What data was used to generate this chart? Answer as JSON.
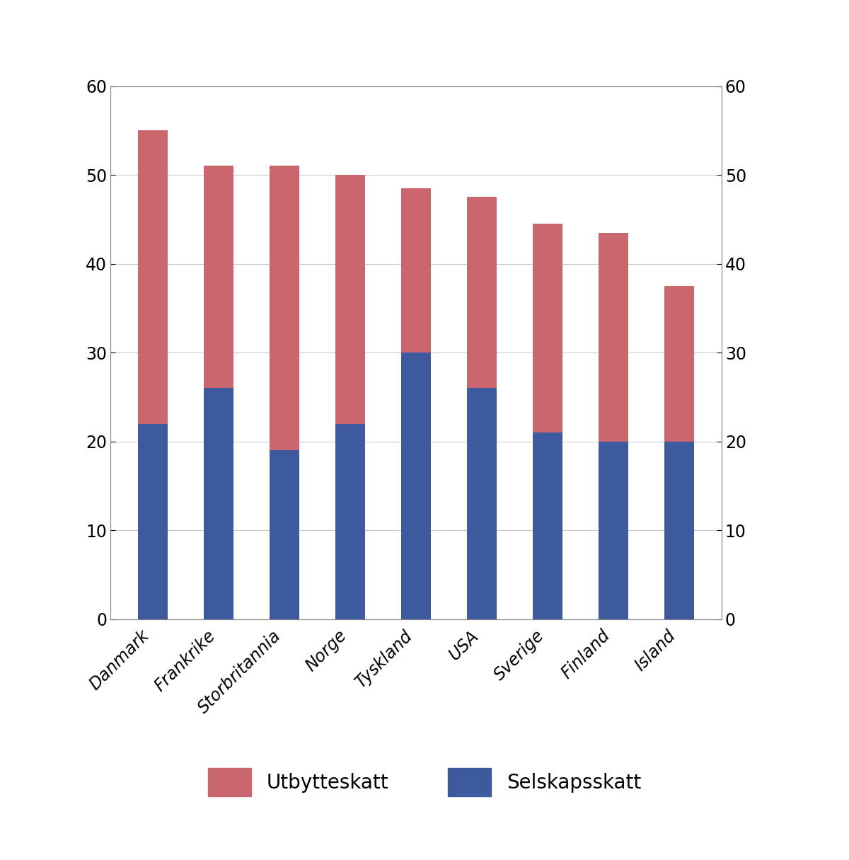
{
  "categories": [
    "Danmark",
    "Frankrike",
    "Storbritannia",
    "Norge",
    "Tyskland",
    "USA",
    "Sverige",
    "Finland",
    "Island"
  ],
  "selskapsskatt": [
    22,
    26,
    19,
    22,
    30,
    26,
    21,
    20,
    20
  ],
  "utbytteskatt": [
    33,
    25,
    32,
    28,
    18.5,
    21.5,
    23.5,
    23.5,
    17.5
  ],
  "color_selskapsskatt": "#3d5a9e",
  "color_utbytteskatt": "#c9666e",
  "ylim": [
    0,
    60
  ],
  "yticks": [
    0,
    10,
    20,
    30,
    40,
    50,
    60
  ],
  "background_color": "#ffffff",
  "legend_utbytteskatt": "Utbytteskatt",
  "legend_selskapsskatt": "Selskapsskatt",
  "bar_width": 0.45
}
